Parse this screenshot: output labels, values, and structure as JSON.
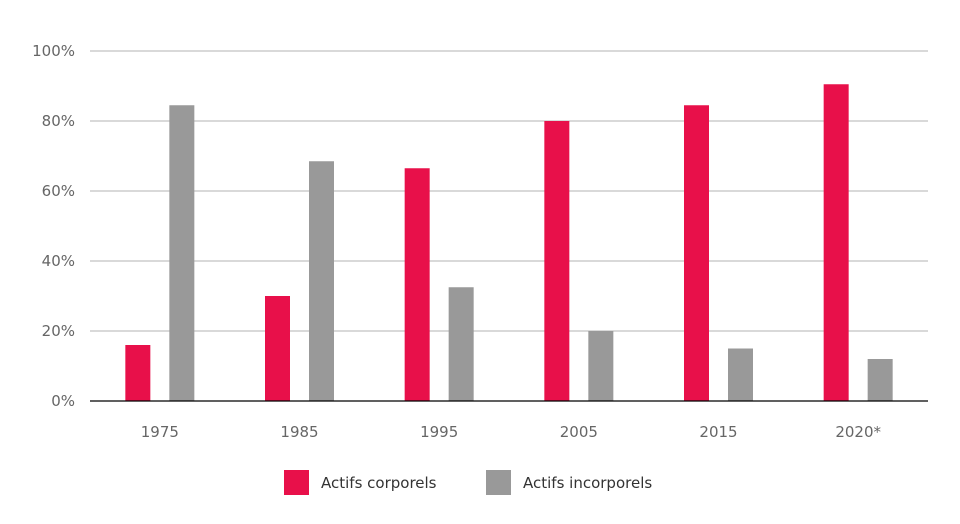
{
  "chart_data": {
    "type": "bar",
    "categories": [
      "1975",
      "1985",
      "1995",
      "2005",
      "2015",
      "2020*"
    ],
    "series": [
      {
        "name": "Actifs corporels",
        "color": "#E8104A",
        "values": [
          16,
          30,
          66.5,
          80,
          84.5,
          90.5
        ]
      },
      {
        "name": "Actifs incorporels",
        "color": "#999999",
        "values": [
          84.5,
          68.5,
          32.5,
          20,
          15,
          12
        ]
      }
    ],
    "y_ticks": [
      "0%",
      "20%",
      "40%",
      "60%",
      "80%",
      "100%"
    ],
    "ylim": [
      0,
      100
    ],
    "grid": true,
    "legend_position": "bottom-center"
  }
}
